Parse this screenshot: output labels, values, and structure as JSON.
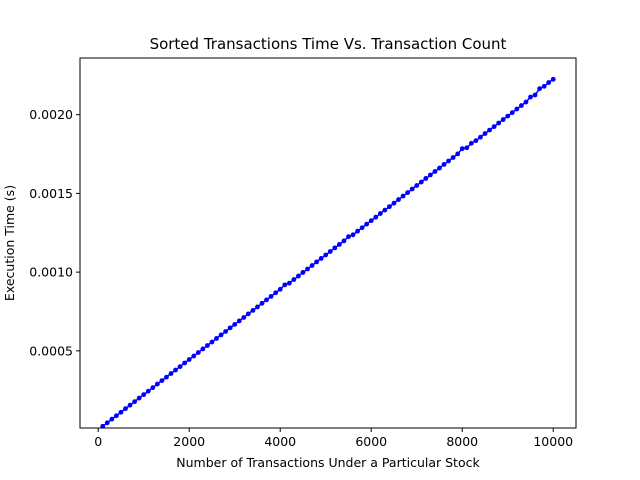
{
  "chart_data": {
    "type": "scatter",
    "title": "Sorted Transactions Time Vs. Transaction Count",
    "xlabel": "Number of Transactions Under a Particular Stock",
    "ylabel": "Execution Time (s)",
    "xlim": [
      -400,
      10500
    ],
    "ylim": [
      1e-05,
      0.00236
    ],
    "xticks": [
      0,
      2000,
      4000,
      6000,
      8000,
      10000
    ],
    "xtick_labels": [
      "0",
      "2000",
      "4000",
      "6000",
      "8000",
      "10000"
    ],
    "yticks": [
      0.0005,
      0.001,
      0.0015,
      0.002
    ],
    "ytick_labels": [
      "0.0005",
      "0.0010",
      "0.0015",
      "0.0020"
    ],
    "grid": false,
    "legend": "none",
    "series": [
      {
        "color": "#0000ff",
        "marker": "dot",
        "line": true,
        "x": [
          100,
          200,
          300,
          400,
          500,
          600,
          700,
          800,
          900,
          1000,
          1100,
          1200,
          1300,
          1400,
          1500,
          1600,
          1700,
          1800,
          1900,
          2000,
          2100,
          2200,
          2300,
          2400,
          2500,
          2600,
          2700,
          2800,
          2900,
          3000,
          3100,
          3200,
          3300,
          3400,
          3500,
          3600,
          3700,
          3800,
          3900,
          4000,
          4100,
          4200,
          4300,
          4400,
          4500,
          4600,
          4700,
          4800,
          4900,
          5000,
          5100,
          5200,
          5300,
          5400,
          5500,
          5600,
          5700,
          5800,
          5900,
          6000,
          6100,
          6200,
          6300,
          6400,
          6500,
          6600,
          6700,
          6800,
          6900,
          7000,
          7100,
          7200,
          7300,
          7400,
          7500,
          7600,
          7700,
          7800,
          7900,
          8000,
          8100,
          8200,
          8300,
          8400,
          8500,
          8600,
          8700,
          8800,
          8900,
          9000,
          9100,
          9200,
          9300,
          9400,
          9500,
          9600,
          9700,
          9800,
          9900,
          10000
        ],
        "y": [
          2.1e-05,
          4.3e-05,
          6.6e-05,
          8.8e-05,
          0.00011,
          0.000133,
          0.000155,
          0.000177,
          0.0002,
          0.000222,
          0.000244,
          0.000266,
          0.000289,
          0.000311,
          0.000333,
          0.000356,
          0.000378,
          0.0004,
          0.000423,
          0.000445,
          0.000467,
          0.000489,
          0.000512,
          0.000534,
          0.000556,
          0.000579,
          0.000601,
          0.000623,
          0.000646,
          0.000668,
          0.00069,
          0.000712,
          0.000735,
          0.000757,
          0.000779,
          0.000802,
          0.000824,
          0.000846,
          0.000869,
          0.000891,
          0.000919,
          0.00093,
          0.000953,
          0.000975,
          0.000998,
          0.00102,
          0.001042,
          0.001065,
          0.001087,
          0.001109,
          0.001131,
          0.001154,
          0.001176,
          0.001198,
          0.001225,
          0.001237,
          0.00126,
          0.001282,
          0.001305,
          0.001327,
          0.001349,
          0.001372,
          0.001394,
          0.001416,
          0.001438,
          0.001461,
          0.001483,
          0.001505,
          0.001528,
          0.00155,
          0.001572,
          0.001595,
          0.001617,
          0.001639,
          0.001661,
          0.001684,
          0.001706,
          0.001728,
          0.001751,
          0.001784,
          0.00179,
          0.001818,
          0.001835,
          0.001857,
          0.00188,
          0.001902,
          0.001924,
          0.001947,
          0.001969,
          0.001991,
          0.002013,
          0.002036,
          0.002058,
          0.00208,
          0.002112,
          0.002125,
          0.002165,
          0.00218,
          0.002204,
          0.002225
        ]
      }
    ]
  }
}
